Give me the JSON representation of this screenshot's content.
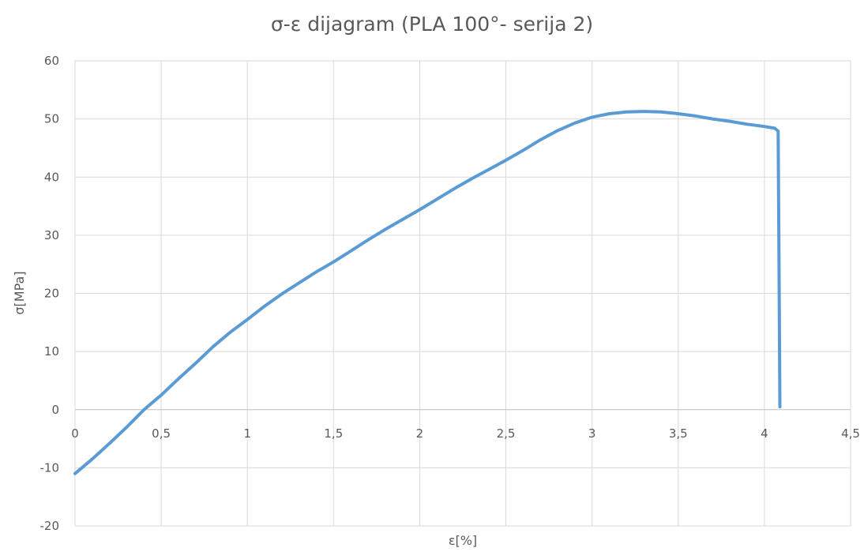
{
  "chart_data": {
    "type": "line",
    "title": "σ-ε dijagram (PLA 100°- serija 2)",
    "xlabel": "ε[%]",
    "ylabel": "σ[MPa]",
    "xlim": [
      0,
      4.5
    ],
    "ylim": [
      -20,
      60
    ],
    "x_ticks": [
      0,
      0.5,
      1,
      1.5,
      2,
      2.5,
      3,
      3.5,
      4,
      4.5
    ],
    "x_tick_labels": [
      "0",
      "0,5",
      "1",
      "1,5",
      "2",
      "2,5",
      "3",
      "3,5",
      "4",
      "4,5"
    ],
    "y_ticks": [
      -20,
      -10,
      0,
      10,
      20,
      30,
      40,
      50,
      60
    ],
    "y_tick_labels": [
      "-20",
      "-10",
      "0",
      "10",
      "20",
      "30",
      "40",
      "50",
      "60"
    ],
    "grid": true,
    "legend": "none",
    "series": [
      {
        "color": "#5b9bd5",
        "x": [
          0,
          0.1,
          0.2,
          0.3,
          0.4,
          0.5,
          0.6,
          0.7,
          0.8,
          0.9,
          1.0,
          1.1,
          1.2,
          1.3,
          1.4,
          1.5,
          1.6,
          1.7,
          1.8,
          1.9,
          2.0,
          2.1,
          2.2,
          2.3,
          2.4,
          2.5,
          2.6,
          2.7,
          2.8,
          2.9,
          3.0,
          3.1,
          3.2,
          3.3,
          3.4,
          3.5,
          3.6,
          3.7,
          3.8,
          3.9,
          4.0,
          4.06,
          4.08,
          4.085,
          4.09
        ],
        "y": [
          -11,
          -8.5,
          -5.8,
          -3,
          0,
          2.5,
          5.3,
          8,
          10.8,
          13.3,
          15.5,
          17.8,
          19.9,
          21.8,
          23.7,
          25.4,
          27.3,
          29.2,
          31,
          32.7,
          34.4,
          36.2,
          38,
          39.7,
          41.3,
          42.9,
          44.6,
          46.4,
          48,
          49.3,
          50.3,
          50.9,
          51.2,
          51.3,
          51.2,
          50.9,
          50.5,
          50,
          49.6,
          49.1,
          48.7,
          48.4,
          47.9,
          25,
          0.5
        ]
      }
    ]
  }
}
